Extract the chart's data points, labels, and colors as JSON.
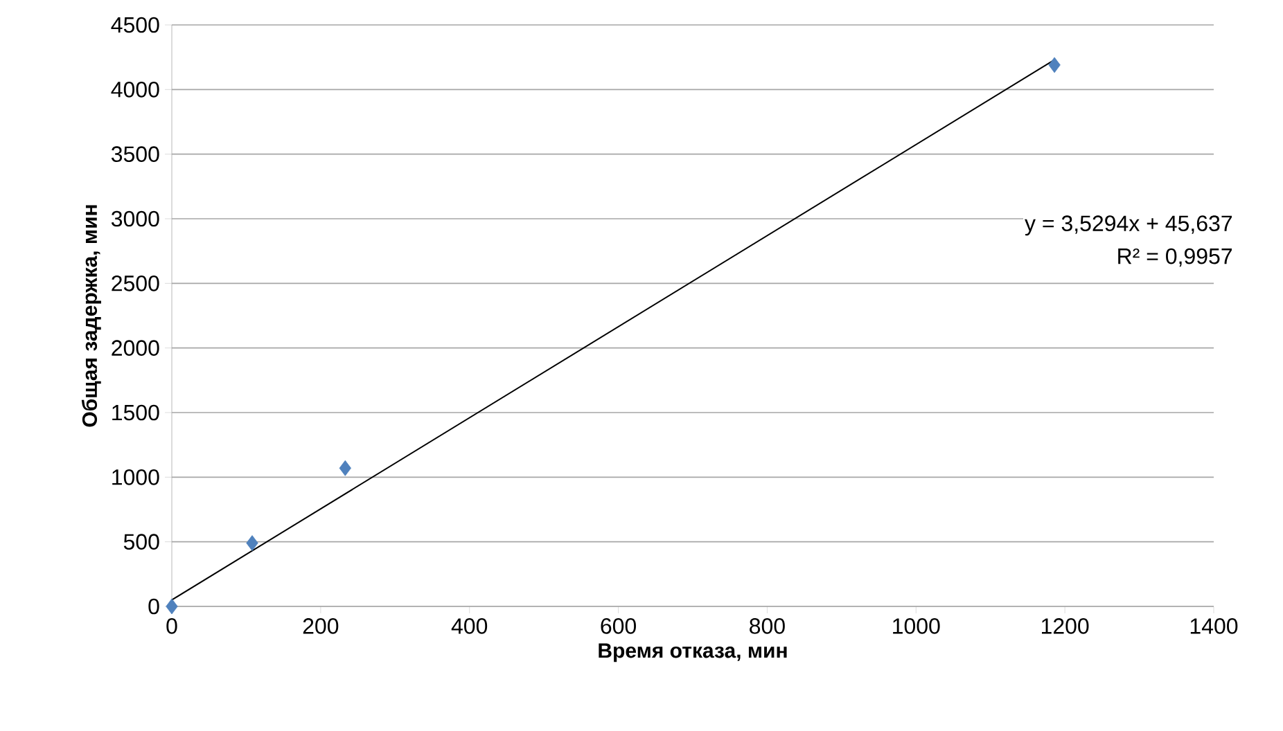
{
  "chart_data": {
    "type": "scatter",
    "xlabel": "Время отказа, мин",
    "ylabel": "Общая задержка, мин",
    "x": [
      0,
      108,
      233,
      1186
    ],
    "series": [
      {
        "type": "scatter",
        "color": "#4f81bd",
        "marker": "diamond",
        "values": [
          0,
          490,
          1070,
          4190
        ]
      },
      {
        "type": "line",
        "color": "#000000",
        "marker": "none",
        "x": [
          0,
          1186
        ],
        "values": [
          50,
          4230
        ]
      }
    ],
    "annotations": [
      "y = 3,5294x + 45,637",
      "R² = 0,9957"
    ],
    "xlim": [
      0,
      1400
    ],
    "xticks": [
      0,
      200,
      400,
      600,
      800,
      1000,
      1200,
      1400
    ],
    "ylim": [
      0,
      4500
    ],
    "yticks": [
      0,
      500,
      1000,
      1500,
      2000,
      2500,
      3000,
      3500,
      4000,
      4500
    ],
    "grid": "y"
  }
}
